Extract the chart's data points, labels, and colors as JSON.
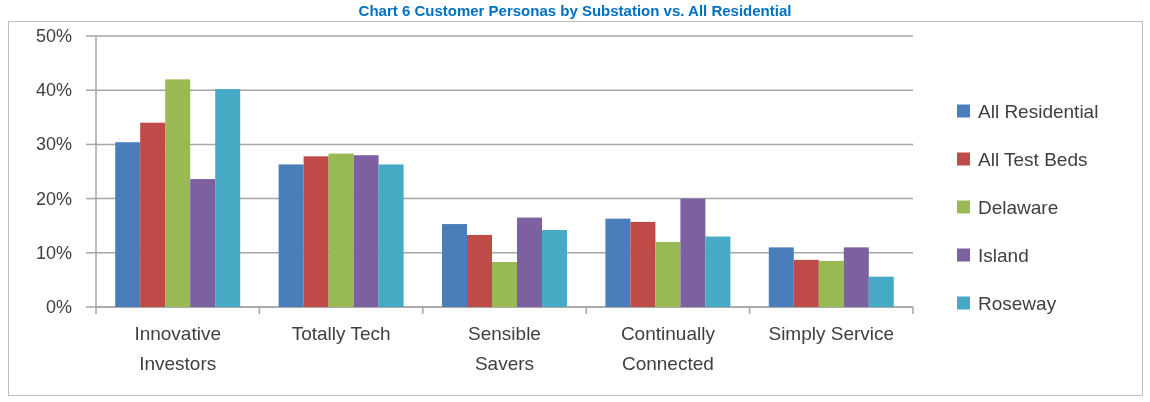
{
  "chart_data": {
    "type": "bar",
    "title": "Chart 6 Customer Personas by Substation vs. All Residential",
    "categories": [
      "Innovative Investors",
      "Totally Tech",
      "Sensible Savers",
      "Continually Connected",
      "Simply Service"
    ],
    "series": [
      {
        "name": "All Residential",
        "color": "#4a7ebb",
        "values": [
          30.4,
          26.3,
          15.3,
          16.3,
          11.0
        ]
      },
      {
        "name": "All Test Beds",
        "color": "#be4b48",
        "values": [
          34.0,
          27.8,
          13.3,
          15.7,
          8.7
        ]
      },
      {
        "name": "Delaware",
        "color": "#98b954",
        "values": [
          42.0,
          28.3,
          8.3,
          12.0,
          8.5
        ]
      },
      {
        "name": "Island",
        "color": "#7d60a0",
        "values": [
          23.6,
          28.0,
          16.5,
          20.0,
          11.0
        ]
      },
      {
        "name": "Roseway",
        "color": "#46aac5",
        "values": [
          40.2,
          26.3,
          14.2,
          13.0,
          5.6
        ]
      }
    ],
    "ylim": [
      0,
      50
    ],
    "yticks": [
      {
        "value": 0,
        "label": "0%"
      },
      {
        "value": 10,
        "label": "10%"
      },
      {
        "value": 20,
        "label": "20%"
      },
      {
        "value": 30,
        "label": "30%"
      },
      {
        "value": 40,
        "label": "40%"
      },
      {
        "value": 50,
        "label": "50%"
      }
    ],
    "grid": "y",
    "legend": "right"
  }
}
